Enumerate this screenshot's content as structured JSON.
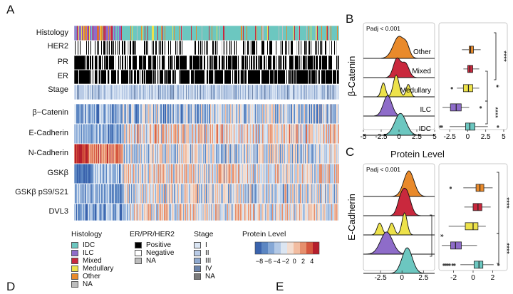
{
  "panel_letters": {
    "a": "A",
    "b": "B",
    "c": "C",
    "d": "D",
    "e": "E"
  },
  "heatmap": {
    "annotation_rows": [
      "Histology",
      "HER2",
      "PR",
      "ER",
      "Stage"
    ],
    "protein_rows": [
      "β−Catenin",
      "E-Cadherin",
      "N-Cadherin",
      "GSKβ",
      "GSKβ pS9/S21",
      "DVL3"
    ]
  },
  "legend": {
    "histology": {
      "title": "Histology",
      "items": [
        {
          "label": "IDC",
          "color": "#6cc7c0"
        },
        {
          "label": "ILC",
          "color": "#8e6cc9"
        },
        {
          "label": "Mixed",
          "color": "#c9283d"
        },
        {
          "label": "Medullary",
          "color": "#ede24a"
        },
        {
          "label": "Other",
          "color": "#e98a2b"
        },
        {
          "label": "NA",
          "color": "#bdbdbd"
        }
      ]
    },
    "receptor": {
      "title": "ER/PR/HER2",
      "items": [
        {
          "label": "Positive",
          "color": "#000000"
        },
        {
          "label": "Negative",
          "color": "#ffffff"
        },
        {
          "label": "NA",
          "color": "#bdbdbd"
        }
      ]
    },
    "stage": {
      "title": "Stage",
      "items": [
        {
          "label": "I",
          "color": "#dbe6f4"
        },
        {
          "label": "II",
          "color": "#b9cbe6"
        },
        {
          "label": "III",
          "color": "#8fa9cf"
        },
        {
          "label": "IV",
          "color": "#6b83aa"
        },
        {
          "label": "NA",
          "color": "#7a7a7a"
        }
      ]
    },
    "protein": {
      "title": "Protein Level",
      "ticks": [
        "−8",
        "−6",
        "−4",
        "−2",
        "0",
        "2",
        "4"
      ],
      "colors": [
        "#3a63ad",
        "#5c86c2",
        "#86a8d6",
        "#b3c9e6",
        "#dbe5f1",
        "#f3ddd0",
        "#f2bca0",
        "#e68f6d",
        "#d5573f",
        "#b51f2d"
      ]
    }
  },
  "panel_b": {
    "padj": "Padj < 0.001",
    "groups": [
      "Other",
      "Mixed",
      "Medullary",
      "ILC",
      "IDC"
    ],
    "ylabel": "β-Catenin",
    "x_ticks_ridge": [
      "-5",
      "-2.5",
      "0",
      "2.5",
      "5"
    ],
    "x_ticks_box": [
      "-2.5",
      "0",
      "2.5",
      "5"
    ],
    "sig_top": "****",
    "sig_mid": "*",
    "sig_bottom": "****"
  },
  "panel_c": {
    "padj": "Padj < 0.001",
    "ylabel": "E-Cadherin",
    "x_ticks_ridge": [
      "-2.5",
      "0",
      "2.5"
    ],
    "x_ticks_box": [
      "-2",
      "0",
      "2"
    ],
    "sig_top": "****",
    "sig_mid": "*",
    "sig_bottom": "****"
  },
  "xaxis_title": "Protein Level",
  "colors": {
    "IDC": "#6cc7c0",
    "ILC": "#8e6cc9",
    "Medullary": "#ede24a",
    "Mixed": "#c9283d",
    "Other": "#e98a2b"
  }
}
